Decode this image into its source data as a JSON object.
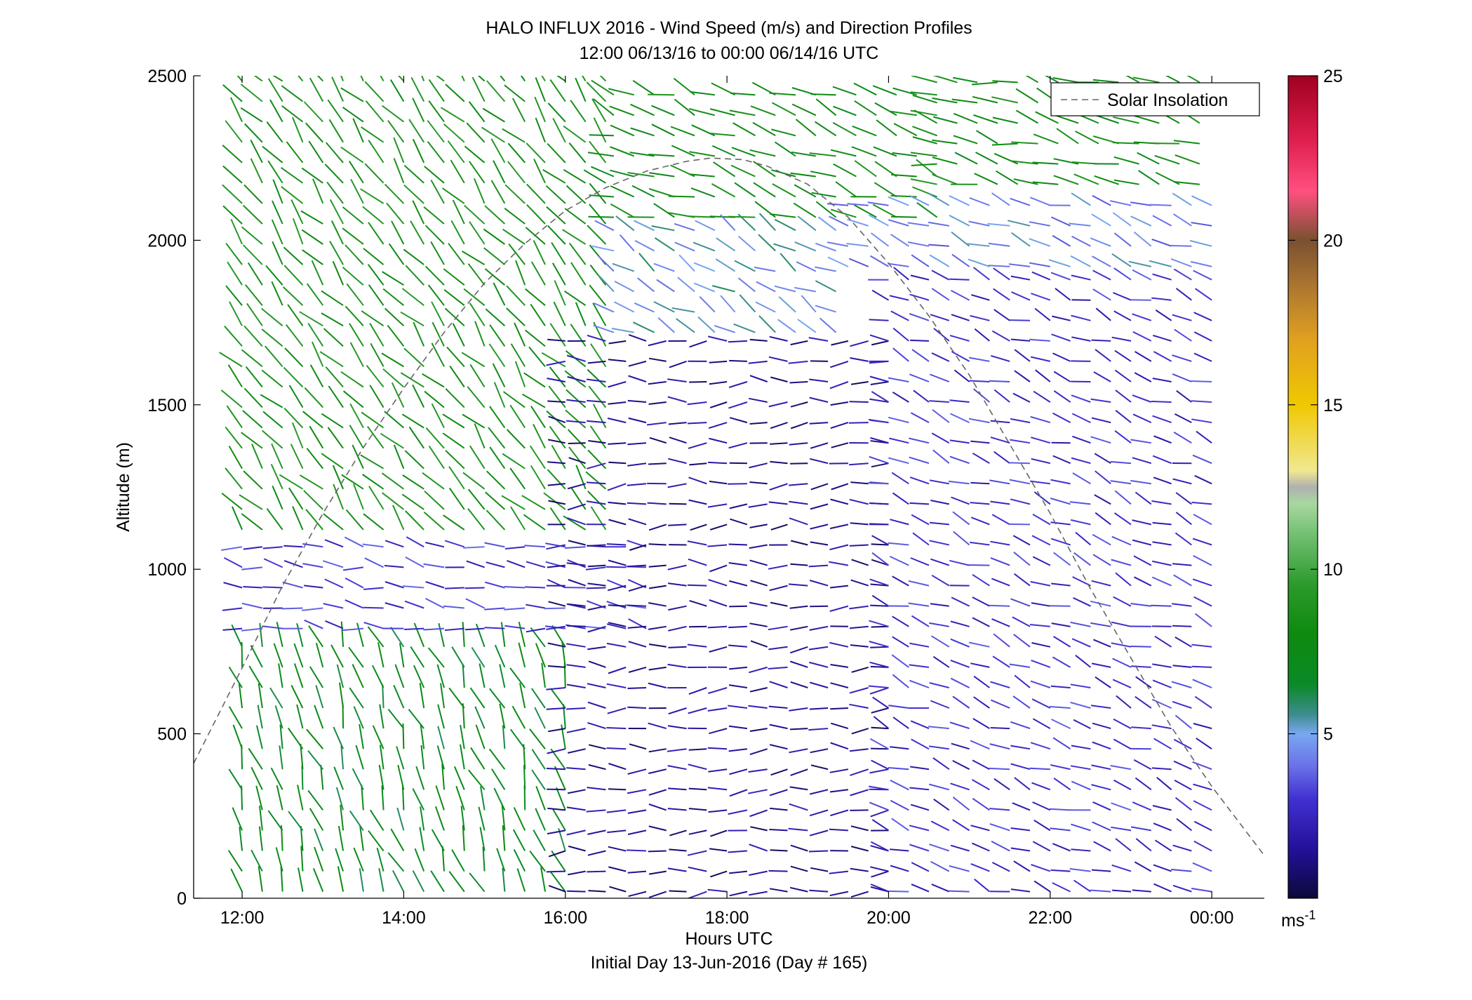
{
  "chart_data": {
    "type": "quiver-profile",
    "title": "HALO INFLUX 2016 - Wind Speed (m/s) and Direction Profiles",
    "subtitle": "12:00 06/13/16 to 00:00 06/14/16  UTC",
    "xlabel": "Hours UTC",
    "xlabel2": "Initial Day 13-Jun-2016 (Day # 165)",
    "ylabel": "Altitude (m)",
    "xlim": [
      11.4,
      24.65
    ],
    "ylim": [
      0,
      2500
    ],
    "x_ticks": [
      12,
      14,
      16,
      18,
      20,
      22,
      24
    ],
    "x_tick_labels": [
      "12:00",
      "14:00",
      "16:00",
      "18:00",
      "20:00",
      "22:00",
      "00:00"
    ],
    "y_ticks": [
      0,
      500,
      1000,
      1500,
      2000,
      2500
    ],
    "y_tick_labels": [
      "0",
      "500",
      "1000",
      "1500",
      "2000",
      "2500"
    ],
    "legend": {
      "position": "top-right",
      "entries": [
        "Solar Insolation"
      ]
    },
    "colorbar": {
      "range": [
        0,
        25
      ],
      "ticks": [
        5,
        10,
        15,
        20,
        25
      ],
      "tick_labels": [
        "5",
        "10",
        "15",
        "20",
        "25"
      ],
      "unit_label": "ms",
      "unit_exponent": "-1",
      "colormap": [
        [
          0,
          "#0a0a3a"
        ],
        [
          1.5,
          "#24109a"
        ],
        [
          3,
          "#4030d0"
        ],
        [
          4,
          "#6a70e8"
        ],
        [
          5,
          "#78a8f0"
        ],
        [
          5.6,
          "#3c8c8c"
        ],
        [
          6.5,
          "#0a8a28"
        ],
        [
          8,
          "#0e8a0e"
        ],
        [
          9.5,
          "#2a9a2a"
        ],
        [
          11,
          "#70be70"
        ],
        [
          12,
          "#a8d8a0"
        ],
        [
          12.5,
          "#b0b0b0"
        ],
        [
          13,
          "#f0e890"
        ],
        [
          15,
          "#f0c800"
        ],
        [
          17,
          "#e0a020"
        ],
        [
          18.5,
          "#b07830"
        ],
        [
          20,
          "#7a5030"
        ],
        [
          21.5,
          "#ff5080"
        ],
        [
          23,
          "#e02050"
        ],
        [
          25,
          "#a00020"
        ]
      ]
    },
    "solar_insolation": {
      "x": [
        11.4,
        12,
        12.5,
        13,
        13.5,
        14,
        14.5,
        15,
        15.5,
        16,
        16.5,
        17,
        17.5,
        17.8,
        18.2,
        18.5,
        19,
        19.5,
        20,
        20.5,
        21,
        21.5,
        22,
        22.5,
        23,
        23.5,
        24,
        24.65
      ],
      "y": [
        410,
        700,
        950,
        1170,
        1370,
        1550,
        1720,
        1870,
        1990,
        2090,
        2160,
        2210,
        2240,
        2250,
        2245,
        2225,
        2170,
        2070,
        1930,
        1770,
        1590,
        1380,
        1170,
        940,
        730,
        520,
        340,
        130
      ]
    },
    "wind_regimes": [
      {
        "x": [
          12,
          16.6
        ],
        "alt": [
          1100,
          2500
        ],
        "speed": 8.5,
        "dir_deg": 320
      },
      {
        "x": [
          16.6,
          20.6
        ],
        "alt": [
          2050,
          2500
        ],
        "speed": 8,
        "dir_deg": 290
      },
      {
        "x": [
          20.6,
          24
        ],
        "alt": [
          2150,
          2500
        ],
        "speed": 8,
        "dir_deg": 285
      },
      {
        "x": [
          16.6,
          19.5
        ],
        "alt": [
          1700,
          2050
        ],
        "speed": 5,
        "dir_deg": 300
      },
      {
        "x": [
          19.5,
          24
        ],
        "alt": [
          1900,
          2150
        ],
        "speed": 4.5,
        "dir_deg": 290
      },
      {
        "x": [
          12,
          16
        ],
        "alt": [
          0,
          800
        ],
        "speed": 7,
        "dir_deg": 340
      },
      {
        "x": [
          12,
          17
        ],
        "alt": [
          800,
          1100
        ],
        "speed": 3,
        "dir_deg": 280
      },
      {
        "x": [
          16,
          20
        ],
        "alt": [
          0,
          1700
        ],
        "speed": 1.5,
        "dir_deg": 270
      },
      {
        "x": [
          20,
          24
        ],
        "alt": [
          0,
          1900
        ],
        "speed": 2.8,
        "dir_deg": 290
      }
    ]
  }
}
